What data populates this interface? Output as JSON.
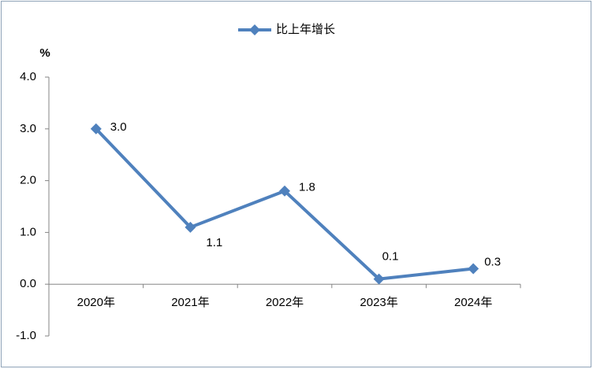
{
  "chart_data": {
    "type": "line",
    "y_unit": "%",
    "categories": [
      "2020年",
      "2021年",
      "2022年",
      "2023年",
      "2024年"
    ],
    "series": [
      {
        "name": "比上年增长",
        "color": "#4f81bd",
        "values": [
          3.0,
          1.1,
          1.8,
          0.1,
          0.3
        ],
        "value_labels": [
          "3.0",
          "1.1",
          "1.8",
          "0.1",
          "0.3"
        ]
      }
    ],
    "ylim": [
      -1,
      4
    ],
    "yticks": [
      {
        "value": -1,
        "label": "-1.0"
      },
      {
        "value": 0,
        "label": "0.0"
      },
      {
        "value": 1,
        "label": "1.0"
      },
      {
        "value": 2,
        "label": "2.0"
      },
      {
        "value": 3,
        "label": "3.0"
      },
      {
        "value": 4,
        "label": "4.0"
      }
    ],
    "legend": "top"
  }
}
